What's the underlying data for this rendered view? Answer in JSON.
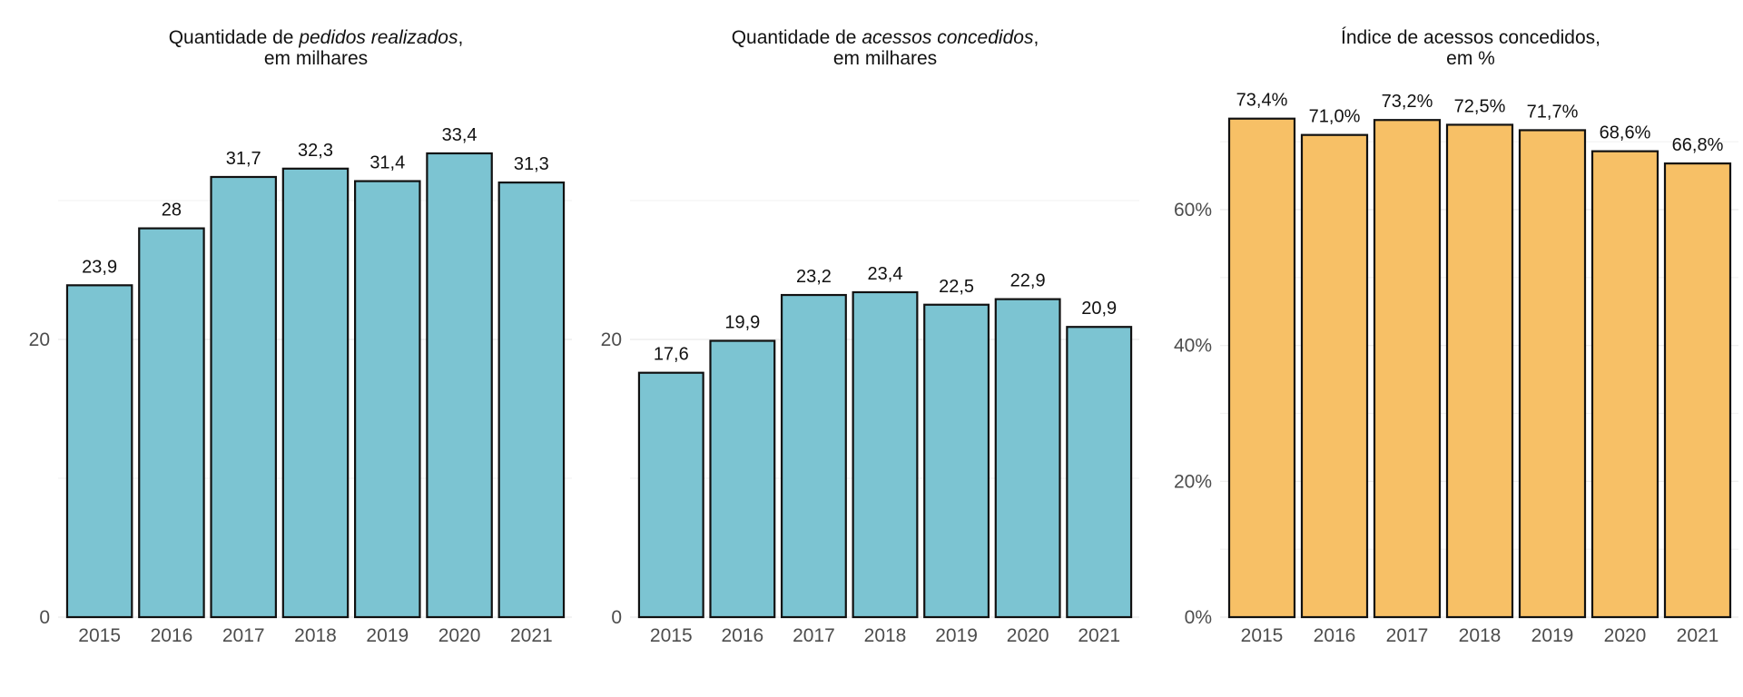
{
  "colors": {
    "teal": "#7cc4d2",
    "orange": "#f7c066"
  },
  "chart_data": [
    {
      "type": "bar",
      "title_parts": [
        {
          "text": "Quantidade de ",
          "italic": false
        },
        {
          "text": "pedidos realizados",
          "italic": true
        },
        {
          "text": ",",
          "italic": false
        }
      ],
      "subtitle": "em milhares",
      "categories": [
        "2015",
        "2016",
        "2017",
        "2018",
        "2019",
        "2020",
        "2021"
      ],
      "values": [
        23.9,
        28.0,
        31.7,
        32.3,
        31.4,
        33.4,
        31.3
      ],
      "value_labels": [
        "23,9",
        "28",
        "31,7",
        "32,3",
        "31,4",
        "33,4",
        "31,3"
      ],
      "yticks": [
        0,
        20
      ],
      "ytick_labels": [
        "0",
        "20"
      ],
      "ylim": [
        0,
        36.5
      ],
      "color": "teal",
      "grid": true
    },
    {
      "type": "bar",
      "title_parts": [
        {
          "text": "Quantidade de ",
          "italic": false
        },
        {
          "text": "acessos concedidos",
          "italic": true
        },
        {
          "text": ",",
          "italic": false
        }
      ],
      "subtitle": "em milhares",
      "categories": [
        "2015",
        "2016",
        "2017",
        "2018",
        "2019",
        "2020",
        "2021"
      ],
      "values": [
        17.6,
        19.9,
        23.2,
        23.4,
        22.5,
        22.9,
        20.9
      ],
      "value_labels": [
        "17,6",
        "19,9",
        "23,2",
        "23,4",
        "22,5",
        "22,9",
        "20,9"
      ],
      "yticks": [
        0,
        20
      ],
      "ytick_labels": [
        "0",
        "20"
      ],
      "ylim": [
        0,
        36.5
      ],
      "color": "teal",
      "grid": true
    },
    {
      "type": "bar",
      "title_parts": [
        {
          "text": "Índice de acessos concedidos,",
          "italic": false
        }
      ],
      "subtitle": "em %",
      "categories": [
        "2015",
        "2016",
        "2017",
        "2018",
        "2019",
        "2020",
        "2021"
      ],
      "values": [
        73.4,
        71.0,
        73.2,
        72.5,
        71.7,
        68.6,
        66.8
      ],
      "value_labels": [
        "73,4%",
        "71,0%",
        "73,2%",
        "72,5%",
        "71,7%",
        "68,6%",
        "66,8%"
      ],
      "yticks": [
        0,
        20,
        40,
        60
      ],
      "ytick_labels": [
        "0%",
        "20%",
        "40%",
        "60%"
      ],
      "ylim": [
        0,
        78
      ],
      "color": "orange",
      "grid": true
    }
  ]
}
